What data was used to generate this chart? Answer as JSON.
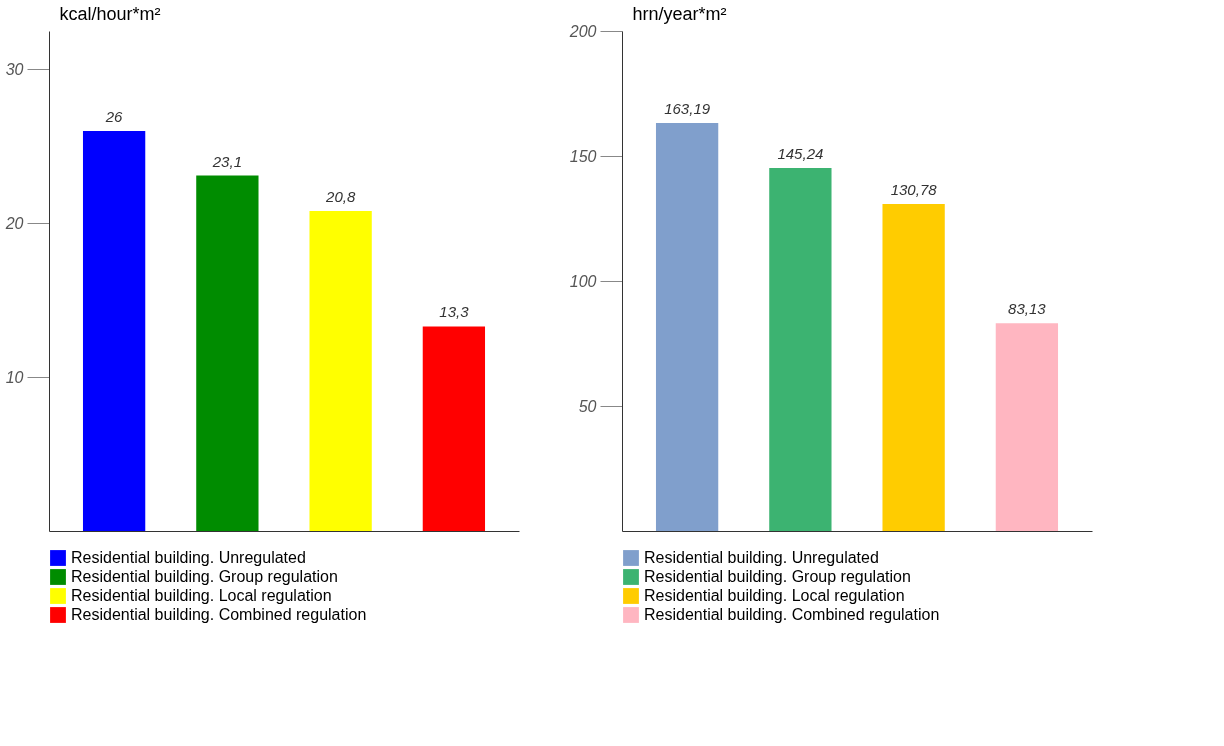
{
  "chart_data": [
    {
      "type": "bar",
      "ylabel": "kcal/hour*m²",
      "categories": [
        null,
        null,
        null,
        null
      ],
      "ylim": [
        0,
        32.5
      ],
      "yticks": [
        10,
        20,
        30
      ],
      "tick_labels": "y",
      "legend": "bottom",
      "grid": false,
      "series": [
        {
          "name": "Residential building. Unregulated",
          "color": "#0000ff",
          "values": [
            26,
            null,
            null,
            null
          ],
          "value_labels": [
            "26",
            null,
            null,
            null
          ]
        },
        {
          "name": "Residential building. Group regulation",
          "color": "#008c00",
          "values": [
            null,
            23.1,
            null,
            null
          ],
          "value_labels": [
            null,
            "23,1",
            null,
            null
          ]
        },
        {
          "name": "Residential building. Local regulation",
          "color": "#ffff00",
          "values": [
            null,
            null,
            20.8,
            null
          ],
          "value_labels": [
            null,
            null,
            "20,8",
            null
          ]
        },
        {
          "name": "Residential building. Combined regulation",
          "color": "#ff0000",
          "values": [
            null,
            null,
            null,
            13.3
          ],
          "value_labels": [
            null,
            null,
            null,
            "13,3"
          ]
        }
      ]
    },
    {
      "type": "bar",
      "ylabel": "hrn/year*m²",
      "categories": [
        null,
        null,
        null,
        null
      ],
      "ylim": [
        0,
        200
      ],
      "yticks": [
        50,
        100,
        150,
        200
      ],
      "tick_labels": "y",
      "legend": "bottom",
      "grid": false,
      "series": [
        {
          "name": "Residential building. Unregulated",
          "color": "#809fcc",
          "values": [
            163.19,
            null,
            null,
            null
          ],
          "value_labels": [
            "163,19",
            null,
            null,
            null
          ]
        },
        {
          "name": "Residential building. Group regulation",
          "color": "#3cb371",
          "values": [
            null,
            145.24,
            null,
            null
          ],
          "value_labels": [
            null,
            "145,24",
            null,
            null
          ]
        },
        {
          "name": "Residential building. Local regulation",
          "color": "#ffcc00",
          "values": [
            null,
            null,
            130.78,
            null
          ],
          "value_labels": [
            null,
            null,
            "130,78",
            null
          ]
        },
        {
          "name": "Residential building. Combined regulation",
          "color": "#ffb6c1",
          "values": [
            null,
            null,
            null,
            83.13
          ],
          "value_labels": [
            null,
            null,
            null,
            "83,13"
          ]
        }
      ]
    }
  ]
}
